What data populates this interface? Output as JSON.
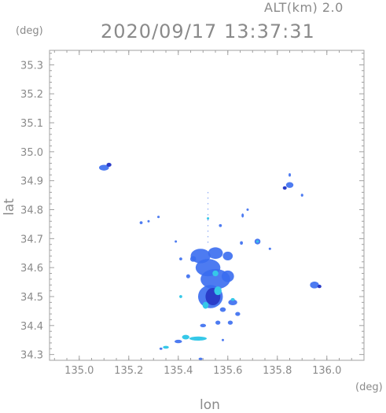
{
  "header": {
    "altitude": "ALT(km) 2.0",
    "datetime": "2020/09/17 13:37:31"
  },
  "axes": {
    "x_unit": "(deg)",
    "y_unit": "(deg)",
    "x_label": "lon",
    "y_label": "lat",
    "x_range": [
      134.88,
      136.15
    ],
    "y_range": [
      34.28,
      35.35
    ],
    "x_ticks": [
      "135.0",
      "135.2",
      "135.4",
      "135.6",
      "135.8",
      "136.0"
    ],
    "y_ticks": [
      "34.3",
      "34.4",
      "34.5",
      "34.6",
      "34.7",
      "34.8",
      "34.9",
      "35.0",
      "35.1",
      "35.2",
      "35.3"
    ]
  },
  "colors": {
    "axis": "#a0a0a0",
    "text": "#8a8a8a",
    "echo_blue": "#3a6df0",
    "echo_deep": "#2a3cc8",
    "echo_cyan": "#35c8e8"
  },
  "echo_cells": [
    {
      "lon": 135.1,
      "lat": 34.945,
      "rx": 0.02,
      "ry": 0.01,
      "level": "blue"
    },
    {
      "lon": 135.12,
      "lat": 34.955,
      "rx": 0.01,
      "ry": 0.007,
      "level": "deep"
    },
    {
      "lon": 135.85,
      "lat": 34.885,
      "rx": 0.015,
      "ry": 0.01,
      "level": "blue"
    },
    {
      "lon": 135.83,
      "lat": 34.875,
      "rx": 0.008,
      "ry": 0.006,
      "level": "deep"
    },
    {
      "lon": 135.85,
      "lat": 34.92,
      "rx": 0.004,
      "ry": 0.006,
      "level": "blue"
    },
    {
      "lon": 135.9,
      "lat": 34.85,
      "rx": 0.005,
      "ry": 0.005,
      "level": "blue"
    },
    {
      "lon": 135.95,
      "lat": 34.54,
      "rx": 0.018,
      "ry": 0.012,
      "level": "blue"
    },
    {
      "lon": 135.97,
      "lat": 34.535,
      "rx": 0.008,
      "ry": 0.006,
      "level": "deep"
    },
    {
      "lon": 135.72,
      "lat": 34.69,
      "rx": 0.012,
      "ry": 0.01,
      "level": "blue"
    },
    {
      "lon": 135.72,
      "lat": 34.69,
      "rx": 0.005,
      "ry": 0.004,
      "level": "cyan"
    },
    {
      "lon": 135.77,
      "lat": 34.665,
      "rx": 0.005,
      "ry": 0.004,
      "level": "blue"
    },
    {
      "lon": 135.655,
      "lat": 34.685,
      "rx": 0.006,
      "ry": 0.006,
      "level": "blue"
    },
    {
      "lon": 135.66,
      "lat": 34.78,
      "rx": 0.004,
      "ry": 0.007,
      "level": "blue"
    },
    {
      "lon": 135.68,
      "lat": 34.8,
      "rx": 0.003,
      "ry": 0.003,
      "level": "blue"
    },
    {
      "lon": 135.25,
      "lat": 34.755,
      "rx": 0.006,
      "ry": 0.005,
      "level": "blue"
    },
    {
      "lon": 135.28,
      "lat": 34.76,
      "rx": 0.004,
      "ry": 0.003,
      "level": "blue"
    },
    {
      "lon": 135.32,
      "lat": 34.775,
      "rx": 0.005,
      "ry": 0.004,
      "level": "blue"
    },
    {
      "lon": 135.57,
      "lat": 34.745,
      "rx": 0.006,
      "ry": 0.005,
      "level": "blue"
    },
    {
      "lon": 135.52,
      "lat": 34.77,
      "rx": 0.004,
      "ry": 0.004,
      "level": "cyan"
    },
    {
      "lon": 135.39,
      "lat": 34.69,
      "rx": 0.003,
      "ry": 0.004,
      "level": "blue"
    },
    {
      "lon": 135.49,
      "lat": 34.64,
      "rx": 0.04,
      "ry": 0.025,
      "level": "blue"
    },
    {
      "lon": 135.55,
      "lat": 34.65,
      "rx": 0.03,
      "ry": 0.02,
      "level": "blue"
    },
    {
      "lon": 135.6,
      "lat": 34.64,
      "rx": 0.02,
      "ry": 0.015,
      "level": "blue"
    },
    {
      "lon": 135.52,
      "lat": 34.6,
      "rx": 0.05,
      "ry": 0.03,
      "level": "blue"
    },
    {
      "lon": 135.55,
      "lat": 34.56,
      "rx": 0.06,
      "ry": 0.035,
      "level": "blue"
    },
    {
      "lon": 135.53,
      "lat": 34.5,
      "rx": 0.05,
      "ry": 0.04,
      "level": "blue"
    },
    {
      "lon": 135.54,
      "lat": 34.5,
      "rx": 0.03,
      "ry": 0.03,
      "level": "deep"
    },
    {
      "lon": 135.56,
      "lat": 34.52,
      "rx": 0.015,
      "ry": 0.015,
      "level": "cyan"
    },
    {
      "lon": 135.51,
      "lat": 34.47,
      "rx": 0.012,
      "ry": 0.012,
      "level": "cyan"
    },
    {
      "lon": 135.55,
      "lat": 34.58,
      "rx": 0.012,
      "ry": 0.01,
      "level": "cyan"
    },
    {
      "lon": 135.6,
      "lat": 34.57,
      "rx": 0.025,
      "ry": 0.02,
      "level": "blue"
    },
    {
      "lon": 135.46,
      "lat": 34.63,
      "rx": 0.012,
      "ry": 0.01,
      "level": "blue"
    },
    {
      "lon": 135.44,
      "lat": 34.57,
      "rx": 0.008,
      "ry": 0.007,
      "level": "blue"
    },
    {
      "lon": 135.58,
      "lat": 34.455,
      "rx": 0.012,
      "ry": 0.008,
      "level": "blue"
    },
    {
      "lon": 135.62,
      "lat": 34.48,
      "rx": 0.018,
      "ry": 0.01,
      "level": "blue"
    },
    {
      "lon": 135.62,
      "lat": 34.49,
      "rx": 0.008,
      "ry": 0.005,
      "level": "cyan"
    },
    {
      "lon": 135.64,
      "lat": 34.44,
      "rx": 0.01,
      "ry": 0.007,
      "level": "blue"
    },
    {
      "lon": 135.61,
      "lat": 34.41,
      "rx": 0.01,
      "ry": 0.007,
      "level": "blue"
    },
    {
      "lon": 135.56,
      "lat": 34.41,
      "rx": 0.01,
      "ry": 0.007,
      "level": "blue"
    },
    {
      "lon": 135.5,
      "lat": 34.4,
      "rx": 0.012,
      "ry": 0.006,
      "level": "blue"
    },
    {
      "lon": 135.41,
      "lat": 34.5,
      "rx": 0.006,
      "ry": 0.005,
      "level": "cyan"
    },
    {
      "lon": 135.41,
      "lat": 34.63,
      "rx": 0.006,
      "ry": 0.005,
      "level": "blue"
    },
    {
      "lon": 135.43,
      "lat": 34.36,
      "rx": 0.015,
      "ry": 0.008,
      "level": "cyan"
    },
    {
      "lon": 135.48,
      "lat": 34.355,
      "rx": 0.035,
      "ry": 0.007,
      "level": "cyan"
    },
    {
      "lon": 135.4,
      "lat": 34.345,
      "rx": 0.015,
      "ry": 0.006,
      "level": "blue"
    },
    {
      "lon": 135.35,
      "lat": 34.325,
      "rx": 0.012,
      "ry": 0.005,
      "level": "cyan"
    },
    {
      "lon": 135.33,
      "lat": 34.32,
      "rx": 0.006,
      "ry": 0.004,
      "level": "blue"
    },
    {
      "lon": 135.49,
      "lat": 34.285,
      "rx": 0.008,
      "ry": 0.004,
      "level": "blue"
    },
    {
      "lon": 135.58,
      "lat": 34.35,
      "rx": 0.004,
      "ry": 0.003,
      "level": "blue"
    }
  ]
}
